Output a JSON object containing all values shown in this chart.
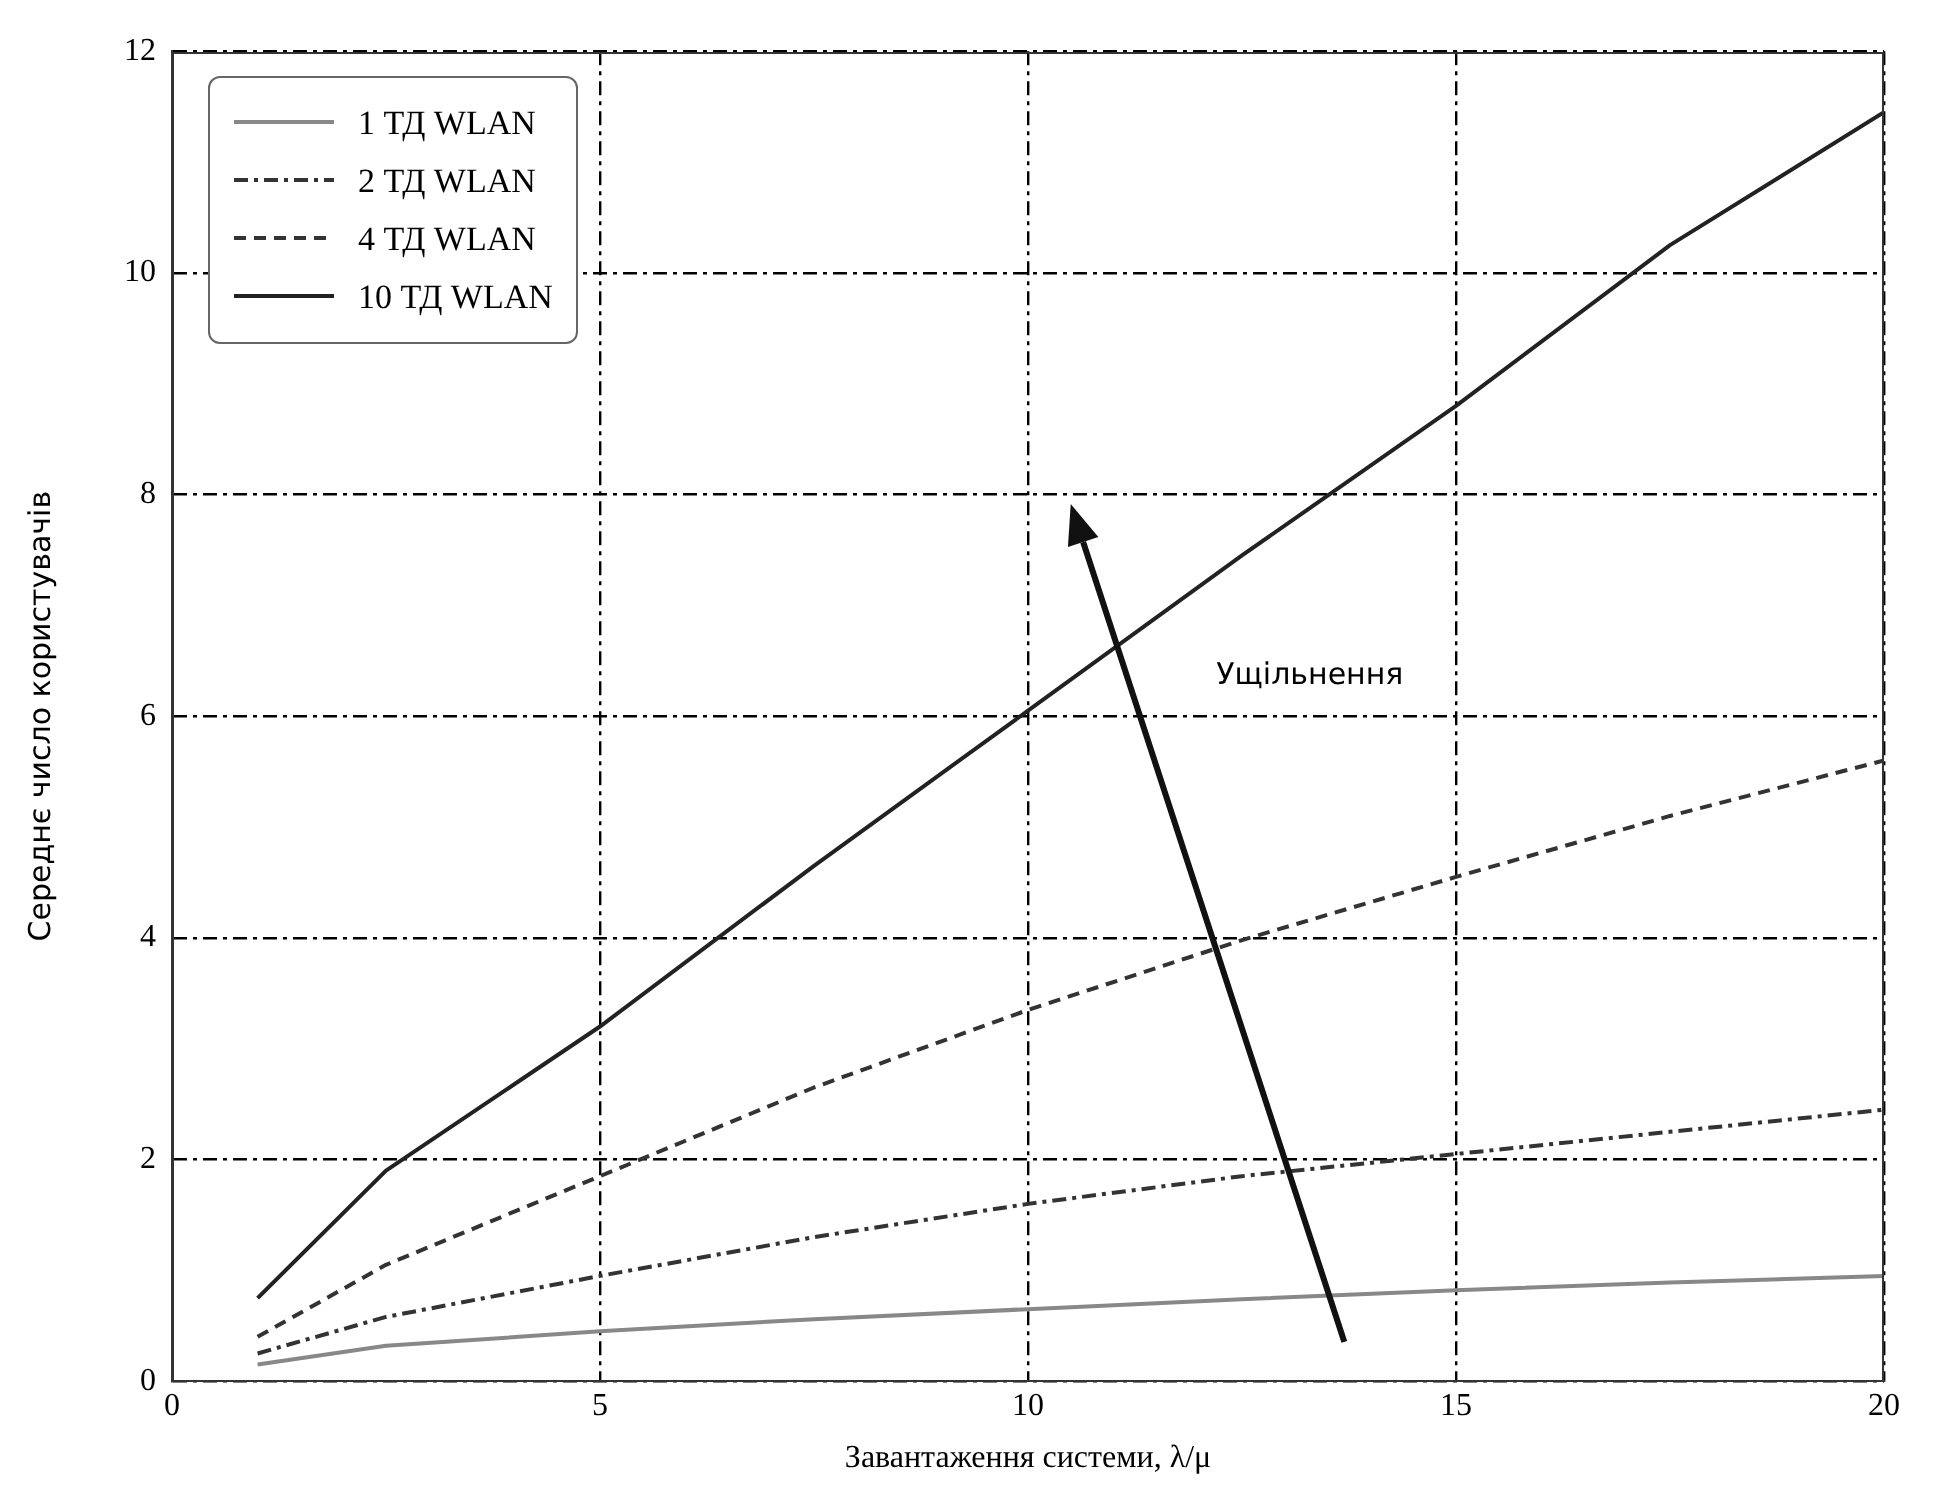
{
  "chart_data": {
    "type": "line",
    "xlabel": "Завантаження системи, λ/μ",
    "ylabel": "Середнє число користувачів",
    "x": [
      1,
      2.5,
      5,
      7.5,
      10,
      12.5,
      15,
      17.5,
      20
    ],
    "series": [
      {
        "name": "1 ТД WLAN",
        "color": "#888888",
        "line_style": "solid",
        "values": [
          0.15,
          0.32,
          0.45,
          0.56,
          0.65,
          0.74,
          0.82,
          0.89,
          0.95
        ]
      },
      {
        "name": "2 ТД WLAN",
        "color": "#333333",
        "line_style": "dashdot",
        "values": [
          0.25,
          0.58,
          0.95,
          1.3,
          1.6,
          1.85,
          2.05,
          2.25,
          2.45
        ]
      },
      {
        "name": "4 ТД WLAN",
        "color": "#333333",
        "line_style": "dashed",
        "values": [
          0.4,
          1.05,
          1.85,
          2.65,
          3.35,
          3.98,
          4.55,
          5.1,
          5.6
        ]
      },
      {
        "name": "10 ТД WLAN",
        "color": "#222222",
        "line_style": "solid",
        "values": [
          0.75,
          1.9,
          3.2,
          4.65,
          6.05,
          7.45,
          8.8,
          10.25,
          11.45
        ]
      }
    ],
    "xlim": [
      0,
      20
    ],
    "xticks": [
      0,
      5,
      10,
      15,
      20
    ],
    "ylim": [
      0,
      12
    ],
    "yticks": [
      0,
      2,
      4,
      6,
      8,
      10,
      12
    ],
    "grid": true,
    "legend": "top left",
    "marker": "none",
    "annotations": [
      "Ущільнення"
    ]
  }
}
